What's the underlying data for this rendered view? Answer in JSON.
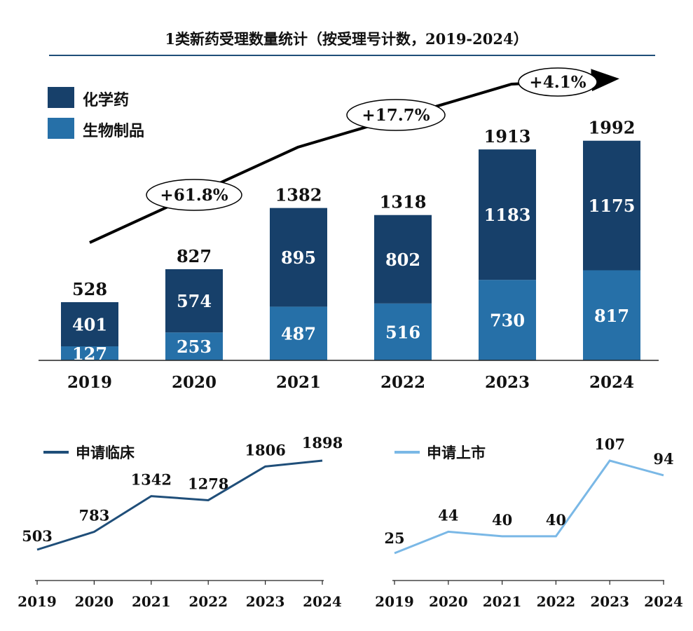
{
  "title": "1类新药受理数量统计（按受理号计数，2019-2024）",
  "colors": {
    "chem": "#17406a",
    "bio": "#2670a8",
    "clinical_line": "#1f4e79",
    "market_line": "#7ab8e6"
  },
  "chart_data": [
    {
      "type": "bar",
      "stacked": true,
      "categories": [
        "2019",
        "2020",
        "2021",
        "2022",
        "2023",
        "2024"
      ],
      "series": [
        {
          "name": "生物制品",
          "values": [
            127,
            253,
            487,
            516,
            730,
            817
          ]
        },
        {
          "name": "化学药",
          "values": [
            401,
            574,
            895,
            802,
            1183,
            1175
          ]
        }
      ],
      "totals": [
        528,
        827,
        1382,
        1318,
        1913,
        1992
      ],
      "ylim": [
        0,
        2200
      ],
      "legend": [
        "化学药",
        "生物制品"
      ],
      "annotations": [
        "+61.8%",
        "+17.7%",
        "+4.1%"
      ]
    },
    {
      "type": "line",
      "title": "申请临床",
      "x": [
        "2019",
        "2020",
        "2021",
        "2022",
        "2023",
        "2024"
      ],
      "values": [
        503,
        783,
        1342,
        1278,
        1806,
        1898
      ],
      "ylim": [
        0,
        2100
      ]
    },
    {
      "type": "line",
      "title": "申请上市",
      "x": [
        "2019",
        "2020",
        "2021",
        "2022",
        "2023",
        "2024"
      ],
      "values": [
        25,
        44,
        40,
        40,
        107,
        94
      ],
      "ylim": [
        0,
        120
      ]
    }
  ]
}
